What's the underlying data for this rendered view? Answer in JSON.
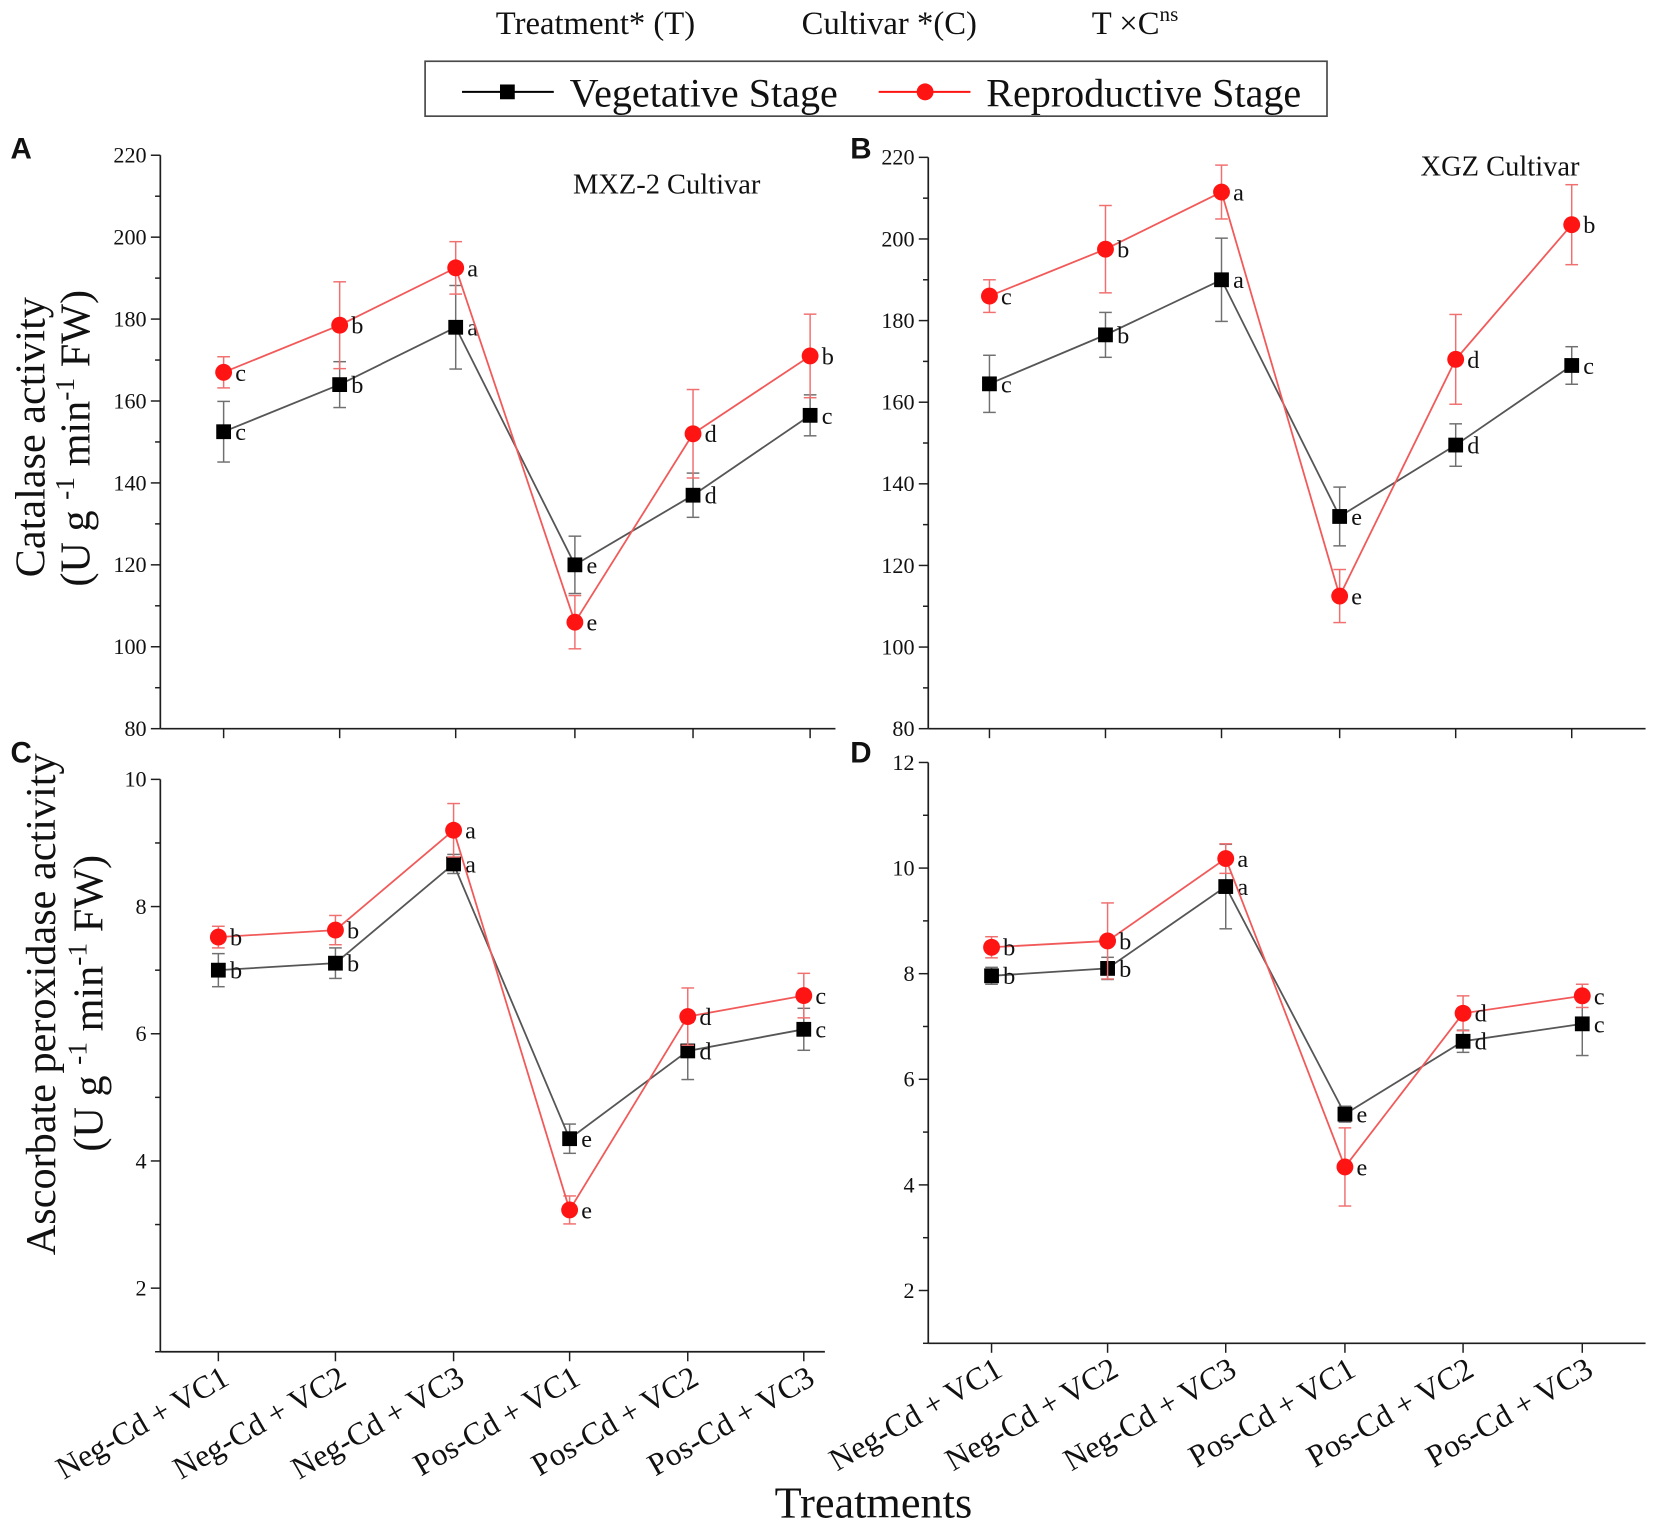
{
  "header": {
    "treatment": "Treatment* (T)",
    "cultivar": "Cultivar *(C)",
    "interaction": "T ×C",
    "interaction_sup": "ns"
  },
  "legend": {
    "vegetative": {
      "label": "Vegetative Stage",
      "marker": "square",
      "marker_color": "#000000",
      "line_color": "#565656",
      "error_color": "#707070"
    },
    "reproductive": {
      "label": "Reproductive Stage",
      "marker": "circle",
      "marker_color": "#ff1414",
      "line_color": "#f25a5a",
      "error_color": "#f07070"
    }
  },
  "xlabel": "Treatments",
  "chart_data": [
    {
      "panel": "A",
      "type": "line",
      "title": "MXZ-2 Cultivar",
      "ylabel": {
        "name": "Catalase activity",
        "unit": [
          {
            "t": "(U g "
          },
          {
            "t": "-1",
            "sup": true
          },
          {
            "t": " min"
          },
          {
            "t": "-1",
            "sup": true
          },
          {
            "t": " FW)"
          }
        ]
      },
      "ylim": [
        80,
        220
      ],
      "yticks": [
        80,
        100,
        120,
        140,
        160,
        180,
        200,
        220
      ],
      "series": {
        "vegetative": {
          "values": [
            152.5,
            164,
            178,
            120,
            137,
            156.5
          ],
          "errors": [
            7.4,
            5.6,
            10.2,
            7,
            5.4,
            5
          ],
          "letters": [
            "c",
            "b",
            "a",
            "e",
            "d",
            "c"
          ]
        },
        "reproductive": {
          "values": [
            167,
            178.5,
            192.5,
            106,
            152,
            171
          ],
          "errors": [
            3.8,
            10.6,
            6.4,
            6.5,
            10.8,
            10.2
          ],
          "letters": [
            "c",
            "b",
            "a",
            "e",
            "d",
            "b"
          ]
        }
      }
    },
    {
      "panel": "B",
      "type": "line",
      "title": "XGZ Cultivar",
      "ylim": [
        80,
        220
      ],
      "yticks": [
        80,
        100,
        120,
        140,
        160,
        180,
        200,
        220
      ],
      "series": {
        "vegetative": {
          "values": [
            164.5,
            176.5,
            190,
            132,
            149.5,
            169
          ],
          "errors": [
            7,
            5.5,
            10.2,
            7.2,
            5.2,
            4.6
          ],
          "letters": [
            "c",
            "b",
            "a",
            "e",
            "d",
            "c"
          ]
        },
        "reproductive": {
          "values": [
            186,
            197.5,
            211.5,
            112.5,
            170.5,
            203.5
          ],
          "errors": [
            4,
            10.7,
            6.6,
            6.5,
            11,
            9.8
          ],
          "letters": [
            "c",
            "b",
            "a",
            "e",
            "d",
            "b"
          ]
        }
      }
    },
    {
      "panel": "C",
      "type": "line",
      "ylabel": {
        "name": "Ascorbate peroxidase activity",
        "unit": [
          {
            "t": "(U g "
          },
          {
            "t": "-1",
            "sup": true
          },
          {
            "t": " min"
          },
          {
            "t": "-1",
            "sup": true
          },
          {
            "t": " FW)"
          }
        ]
      },
      "categories": [
        "Neg-Cd + VC1",
        "Neg-Cd + VC2",
        "Neg-Cd + VC3",
        "Pos-Cd + VC1",
        "Pos-Cd + VC2",
        "Pos-Cd + VC3"
      ],
      "ylim": [
        1,
        10
      ],
      "yticks": [
        2,
        4,
        6,
        8,
        10
      ],
      "series": {
        "vegetative": {
          "values": [
            7.0,
            7.11,
            8.67,
            4.35,
            5.73,
            6.07
          ],
          "errors": [
            0.26,
            0.24,
            0.15,
            0.23,
            0.45,
            0.33
          ],
          "letters": [
            "b",
            "b",
            "a",
            "e",
            "d",
            "c"
          ]
        },
        "reproductive": {
          "values": [
            7.52,
            7.63,
            9.2,
            3.23,
            6.27,
            6.6
          ],
          "errors": [
            0.17,
            0.23,
            0.42,
            0.22,
            0.45,
            0.35
          ],
          "letters": [
            "b",
            "b",
            "a",
            "e",
            "d",
            "c"
          ]
        }
      }
    },
    {
      "panel": "D",
      "type": "line",
      "categories": [
        "Neg-Cd + VC1",
        "Neg-Cd + VC2",
        "Neg-Cd + VC3",
        "Pos-Cd + VC1",
        "Pos-Cd + VC2",
        "Pos-Cd + VC3"
      ],
      "ylim": [
        1,
        12
      ],
      "yticks": [
        2,
        4,
        6,
        8,
        10,
        12
      ],
      "series": {
        "vegetative": {
          "values": [
            7.96,
            8.1,
            9.65,
            5.34,
            6.72,
            7.05
          ],
          "errors": [
            0.16,
            0.21,
            0.8,
            0.15,
            0.21,
            0.6
          ],
          "letters": [
            "b",
            "b",
            "a",
            "e",
            "d",
            "c"
          ]
        },
        "reproductive": {
          "values": [
            8.5,
            8.62,
            10.18,
            4.34,
            7.25,
            7.58
          ],
          "errors": [
            0.2,
            0.72,
            0.28,
            0.74,
            0.33,
            0.22
          ],
          "letters": [
            "b",
            "b",
            "a",
            "e",
            "d",
            "c"
          ]
        }
      }
    }
  ]
}
